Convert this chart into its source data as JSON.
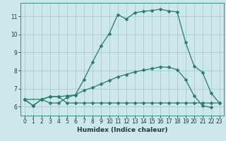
{
  "title": "",
  "xlabel": "Humidex (Indice chaleur)",
  "bg_color": "#cce8ea",
  "grid_color": "#aacccc",
  "line_color": "#2a7a6a",
  "xlim": [
    -0.5,
    23.5
  ],
  "ylim": [
    5.5,
    11.75
  ],
  "xticks": [
    0,
    1,
    2,
    3,
    4,
    5,
    6,
    7,
    8,
    9,
    10,
    11,
    12,
    13,
    14,
    15,
    16,
    17,
    18,
    19,
    20,
    21,
    22,
    23
  ],
  "yticks": [
    6,
    7,
    8,
    9,
    10,
    11
  ],
  "line1_x": [
    0,
    1,
    2,
    3,
    4,
    5,
    6,
    7,
    8,
    9,
    10,
    11,
    12,
    13,
    14,
    15,
    16,
    17,
    18,
    19,
    20,
    21,
    22,
    23
  ],
  "line1_y": [
    6.4,
    6.05,
    6.4,
    6.2,
    6.2,
    6.5,
    6.65,
    7.5,
    8.45,
    9.35,
    10.05,
    11.1,
    10.85,
    11.2,
    11.28,
    11.32,
    11.4,
    11.3,
    11.25,
    9.55,
    8.25,
    7.9,
    6.75,
    6.2
  ],
  "line2_x": [
    0,
    1,
    2,
    3,
    4,
    5,
    6,
    7,
    8,
    9,
    10,
    11,
    12,
    13,
    14,
    15,
    16,
    17,
    18,
    19,
    20,
    21,
    22
  ],
  "line2_y": [
    6.4,
    6.05,
    6.4,
    6.55,
    6.55,
    6.6,
    6.65,
    6.9,
    7.05,
    7.25,
    7.45,
    7.65,
    7.78,
    7.92,
    8.02,
    8.1,
    8.2,
    8.18,
    8.05,
    7.5,
    6.6,
    6.05,
    5.95
  ],
  "line3_x": [
    0,
    2,
    3,
    4,
    5,
    6,
    7,
    8,
    9,
    10,
    11,
    12,
    13,
    14,
    15,
    16,
    17,
    18,
    19,
    20,
    21,
    22,
    23
  ],
  "line3_y": [
    6.4,
    6.4,
    6.55,
    6.55,
    6.2,
    6.2,
    6.2,
    6.2,
    6.2,
    6.2,
    6.2,
    6.2,
    6.2,
    6.2,
    6.2,
    6.2,
    6.2,
    6.2,
    6.2,
    6.2,
    6.2,
    6.2,
    6.2
  ],
  "marker": "D",
  "markersize": 2.5,
  "linewidth": 0.9,
  "tick_fontsize": 5.5,
  "xlabel_fontsize": 6.5
}
